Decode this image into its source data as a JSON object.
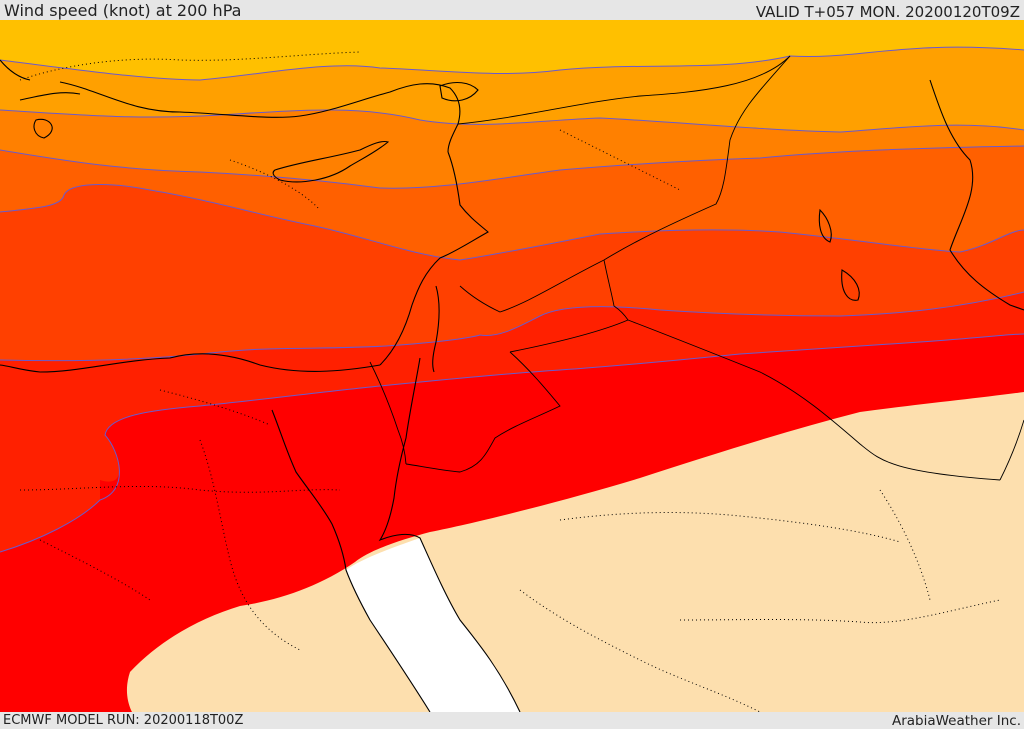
{
  "header": {
    "title": "Wind speed (knot) at 200 hPa",
    "valid_time": "VALID T+057 MON. 20200120T09Z"
  },
  "footer": {
    "model_run": "ECMWF MODEL RUN: 20200118T00Z",
    "credit": "ArabiaWeather Inc."
  },
  "map": {
    "colors": {
      "band_1": "#ffc000",
      "band_2": "#ffa000",
      "band_3": "#ff8000",
      "band_4": "#ff6000",
      "band_5": "#ff4000",
      "band_6": "#ff2000",
      "band_7": "#ff0000",
      "calm": "#fddfae",
      "sea": "#ffffff",
      "contour": "#6a5acd",
      "coastline": "#000000"
    }
  }
}
